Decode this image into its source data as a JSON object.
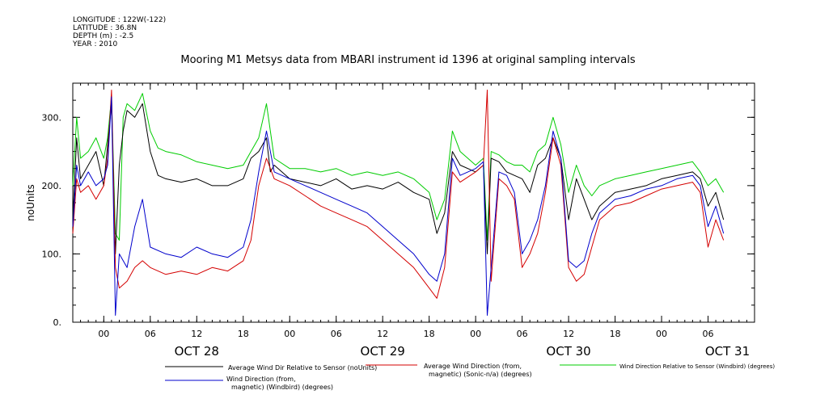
{
  "header": {
    "longitude": "LONGITUDE : 122W(-122)",
    "latitude": "LATITUDE : 36.8N",
    "depth": "DEPTH (m) : -2.5",
    "year": "YEAR : 2010"
  },
  "chart_data": {
    "type": "line",
    "title": "Mooring M1 Metsys data from MBARI instrument id 1396 at original sampling intervals",
    "ylabel": "noUnits",
    "ylim": [
      0,
      350
    ],
    "xlim": [
      -4,
      84
    ],
    "x_unit": "hours from Oct 28 00:00",
    "grid": false,
    "legend_placement": "bottom",
    "yticks": [
      {
        "value": 0,
        "label": "0."
      },
      {
        "value": 100,
        "label": "100."
      },
      {
        "value": 200,
        "label": "200."
      },
      {
        "value": 300,
        "label": "300."
      }
    ],
    "xticks": [
      {
        "x": 0,
        "label": "00"
      },
      {
        "x": 6,
        "label": "06"
      },
      {
        "x": 12,
        "label": "12"
      },
      {
        "x": 18,
        "label": "18"
      },
      {
        "x": 24,
        "label": "00"
      },
      {
        "x": 30,
        "label": "06"
      },
      {
        "x": 36,
        "label": "12"
      },
      {
        "x": 42,
        "label": "18"
      },
      {
        "x": 48,
        "label": "00"
      },
      {
        "x": 54,
        "label": "06"
      },
      {
        "x": 60,
        "label": "12"
      },
      {
        "x": 66,
        "label": "18"
      },
      {
        "x": 72,
        "label": "00"
      },
      {
        "x": 78,
        "label": "06"
      }
    ],
    "date_labels": [
      {
        "x": 12,
        "label": "OCT 28"
      },
      {
        "x": 36,
        "label": "OCT 29"
      },
      {
        "x": 60,
        "label": "OCT 30"
      },
      {
        "x": 80.5,
        "label": "OCT 31"
      }
    ],
    "series": [
      {
        "name": "Average Wind Dir Relative to Sensor (noUnits)",
        "color": "#000000",
        "points": [
          [
            -4,
            150
          ],
          [
            -3.5,
            270
          ],
          [
            -3,
            210
          ],
          [
            -2,
            230
          ],
          [
            -1,
            250
          ],
          [
            0,
            200
          ],
          [
            0.5,
            260
          ],
          [
            1,
            320
          ],
          [
            1.5,
            100
          ],
          [
            2,
            230
          ],
          [
            2.5,
            280
          ],
          [
            3,
            310
          ],
          [
            4,
            300
          ],
          [
            5,
            320
          ],
          [
            6,
            250
          ],
          [
            7,
            215
          ],
          [
            8,
            210
          ],
          [
            10,
            205
          ],
          [
            12,
            210
          ],
          [
            14,
            200
          ],
          [
            16,
            200
          ],
          [
            18,
            210
          ],
          [
            19,
            240
          ],
          [
            20,
            250
          ],
          [
            21,
            270
          ],
          [
            21.5,
            220
          ],
          [
            22,
            230
          ],
          [
            24,
            210
          ],
          [
            26,
            205
          ],
          [
            28,
            200
          ],
          [
            30,
            210
          ],
          [
            32,
            195
          ],
          [
            34,
            200
          ],
          [
            36,
            195
          ],
          [
            38,
            205
          ],
          [
            40,
            190
          ],
          [
            42,
            180
          ],
          [
            43,
            130
          ],
          [
            44,
            160
          ],
          [
            45,
            250
          ],
          [
            46,
            230
          ],
          [
            48,
            220
          ],
          [
            49,
            230
          ],
          [
            49.5,
            100
          ],
          [
            50,
            240
          ],
          [
            51,
            235
          ],
          [
            52,
            220
          ],
          [
            53,
            215
          ],
          [
            54,
            210
          ],
          [
            55,
            190
          ],
          [
            56,
            230
          ],
          [
            57,
            240
          ],
          [
            58,
            270
          ],
          [
            59,
            240
          ],
          [
            60,
            150
          ],
          [
            61,
            210
          ],
          [
            62,
            180
          ],
          [
            63,
            150
          ],
          [
            64,
            170
          ],
          [
            66,
            190
          ],
          [
            68,
            195
          ],
          [
            70,
            200
          ],
          [
            72,
            210
          ],
          [
            74,
            215
          ],
          [
            76,
            220
          ],
          [
            77,
            210
          ],
          [
            78,
            170
          ],
          [
            79,
            190
          ],
          [
            80,
            150
          ]
        ]
      },
      {
        "name": "Average Wind Direction (from, magnetic) (Sonic-n/a) (degrees)",
        "color": "#d40000",
        "points": [
          [
            -4,
            130
          ],
          [
            -3.5,
            210
          ],
          [
            -3,
            190
          ],
          [
            -2,
            200
          ],
          [
            -1,
            180
          ],
          [
            0,
            200
          ],
          [
            0.5,
            240
          ],
          [
            1,
            340
          ],
          [
            1.5,
            80
          ],
          [
            2,
            50
          ],
          [
            3,
            60
          ],
          [
            4,
            80
          ],
          [
            5,
            90
          ],
          [
            6,
            80
          ],
          [
            8,
            70
          ],
          [
            10,
            75
          ],
          [
            12,
            70
          ],
          [
            14,
            80
          ],
          [
            16,
            75
          ],
          [
            18,
            90
          ],
          [
            19,
            120
          ],
          [
            20,
            200
          ],
          [
            21,
            240
          ],
          [
            22,
            210
          ],
          [
            24,
            200
          ],
          [
            26,
            185
          ],
          [
            28,
            170
          ],
          [
            30,
            160
          ],
          [
            32,
            150
          ],
          [
            34,
            140
          ],
          [
            36,
            120
          ],
          [
            38,
            100
          ],
          [
            40,
            80
          ],
          [
            42,
            50
          ],
          [
            43,
            35
          ],
          [
            44,
            80
          ],
          [
            45,
            220
          ],
          [
            46,
            205
          ],
          [
            48,
            220
          ],
          [
            49,
            230
          ],
          [
            49.5,
            340
          ],
          [
            50,
            60
          ],
          [
            51,
            210
          ],
          [
            52,
            200
          ],
          [
            53,
            180
          ],
          [
            54,
            80
          ],
          [
            55,
            100
          ],
          [
            56,
            130
          ],
          [
            57,
            190
          ],
          [
            58,
            270
          ],
          [
            59,
            230
          ],
          [
            60,
            80
          ],
          [
            61,
            60
          ],
          [
            62,
            70
          ],
          [
            63,
            110
          ],
          [
            64,
            150
          ],
          [
            66,
            170
          ],
          [
            68,
            175
          ],
          [
            70,
            185
          ],
          [
            72,
            195
          ],
          [
            74,
            200
          ],
          [
            76,
            205
          ],
          [
            77,
            190
          ],
          [
            78,
            110
          ],
          [
            79,
            150
          ],
          [
            80,
            120
          ]
        ]
      },
      {
        "name": "Wind Direction Relative to Sensor (Windbird) (degrees)",
        "color": "#00cc00",
        "points": [
          [
            -4,
            200
          ],
          [
            -3.5,
            300
          ],
          [
            -3,
            240
          ],
          [
            -2,
            250
          ],
          [
            -1,
            270
          ],
          [
            0,
            240
          ],
          [
            0.5,
            270
          ],
          [
            1,
            330
          ],
          [
            1.5,
            130
          ],
          [
            2,
            120
          ],
          [
            2.5,
            300
          ],
          [
            3,
            320
          ],
          [
            4,
            310
          ],
          [
            5,
            335
          ],
          [
            6,
            280
          ],
          [
            7,
            255
          ],
          [
            8,
            250
          ],
          [
            10,
            245
          ],
          [
            12,
            235
          ],
          [
            14,
            230
          ],
          [
            16,
            225
          ],
          [
            18,
            230
          ],
          [
            19,
            250
          ],
          [
            20,
            270
          ],
          [
            21,
            320
          ],
          [
            22,
            240
          ],
          [
            24,
            225
          ],
          [
            26,
            225
          ],
          [
            28,
            220
          ],
          [
            30,
            225
          ],
          [
            32,
            215
          ],
          [
            34,
            220
          ],
          [
            36,
            215
          ],
          [
            38,
            220
          ],
          [
            40,
            210
          ],
          [
            42,
            190
          ],
          [
            43,
            150
          ],
          [
            44,
            180
          ],
          [
            45,
            280
          ],
          [
            46,
            250
          ],
          [
            48,
            230
          ],
          [
            49,
            240
          ],
          [
            49.5,
            120
          ],
          [
            50,
            250
          ],
          [
            51,
            245
          ],
          [
            52,
            235
          ],
          [
            53,
            230
          ],
          [
            54,
            230
          ],
          [
            55,
            220
          ],
          [
            56,
            250
          ],
          [
            57,
            260
          ],
          [
            58,
            300
          ],
          [
            59,
            260
          ],
          [
            60,
            190
          ],
          [
            61,
            230
          ],
          [
            62,
            200
          ],
          [
            63,
            185
          ],
          [
            64,
            200
          ],
          [
            66,
            210
          ],
          [
            68,
            215
          ],
          [
            70,
            220
          ],
          [
            72,
            225
          ],
          [
            74,
            230
          ],
          [
            76,
            235
          ],
          [
            77,
            220
          ],
          [
            78,
            200
          ],
          [
            79,
            210
          ],
          [
            80,
            190
          ]
        ]
      },
      {
        "name": "Wind Direction (from, magnetic) (Windbird) (degrees)",
        "color": "#0000cc",
        "points": [
          [
            -4,
            140
          ],
          [
            -3.5,
            230
          ],
          [
            -3,
            200
          ],
          [
            -2,
            220
          ],
          [
            -1,
            200
          ],
          [
            0,
            210
          ],
          [
            0.5,
            230
          ],
          [
            1,
            330
          ],
          [
            1.5,
            10
          ],
          [
            2,
            100
          ],
          [
            3,
            80
          ],
          [
            4,
            140
          ],
          [
            5,
            180
          ],
          [
            6,
            110
          ],
          [
            8,
            100
          ],
          [
            10,
            95
          ],
          [
            12,
            110
          ],
          [
            14,
            100
          ],
          [
            16,
            95
          ],
          [
            18,
            110
          ],
          [
            19,
            150
          ],
          [
            20,
            220
          ],
          [
            21,
            280
          ],
          [
            22,
            220
          ],
          [
            24,
            210
          ],
          [
            26,
            200
          ],
          [
            28,
            190
          ],
          [
            30,
            180
          ],
          [
            32,
            170
          ],
          [
            34,
            160
          ],
          [
            36,
            140
          ],
          [
            38,
            120
          ],
          [
            40,
            100
          ],
          [
            42,
            70
          ],
          [
            43,
            60
          ],
          [
            44,
            100
          ],
          [
            45,
            240
          ],
          [
            46,
            215
          ],
          [
            48,
            225
          ],
          [
            49,
            235
          ],
          [
            49.5,
            10
          ],
          [
            50,
            80
          ],
          [
            51,
            220
          ],
          [
            52,
            215
          ],
          [
            53,
            190
          ],
          [
            54,
            100
          ],
          [
            55,
            120
          ],
          [
            56,
            150
          ],
          [
            57,
            200
          ],
          [
            58,
            280
          ],
          [
            59,
            240
          ],
          [
            60,
            90
          ],
          [
            61,
            80
          ],
          [
            62,
            90
          ],
          [
            63,
            130
          ],
          [
            64,
            160
          ],
          [
            66,
            180
          ],
          [
            68,
            185
          ],
          [
            70,
            195
          ],
          [
            72,
            200
          ],
          [
            74,
            210
          ],
          [
            76,
            215
          ],
          [
            77,
            200
          ],
          [
            78,
            140
          ],
          [
            79,
            170
          ],
          [
            80,
            130
          ]
        ]
      }
    ]
  }
}
